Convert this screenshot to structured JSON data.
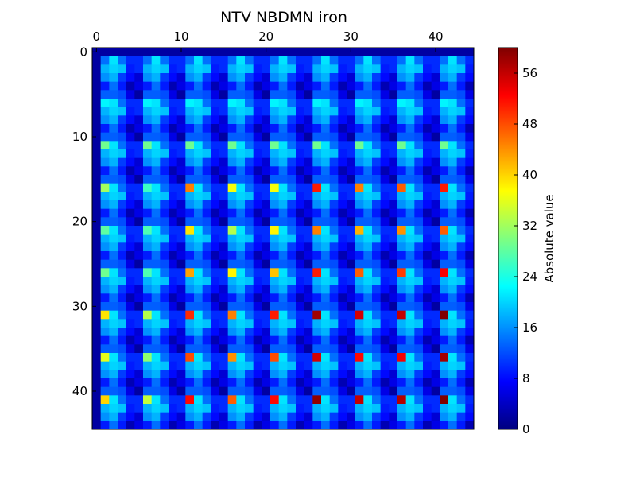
{
  "chart_data": {
    "type": "heatmap",
    "title": "NTV NBDMN iron",
    "xlabel": "",
    "ylabel": "",
    "rows": 45,
    "cols": 45,
    "x_ticks": [
      0,
      10,
      20,
      30,
      40
    ],
    "y_ticks": [
      0,
      10,
      20,
      30,
      40
    ],
    "x_tick_labels": [
      "0",
      "10",
      "20",
      "30",
      "40"
    ],
    "y_tick_labels": [
      "0",
      "10",
      "20",
      "30",
      "40"
    ],
    "x_axis_position": "top",
    "grid": false,
    "colormap": "jet",
    "colorbar": {
      "label": "Absolute value",
      "min": 0,
      "max": 60,
      "ticks": [
        0,
        8,
        16,
        24,
        32,
        40,
        48,
        56
      ],
      "tick_labels": [
        "0",
        "8",
        "16",
        "24",
        "32",
        "40",
        "48",
        "56"
      ],
      "position": "right"
    },
    "block_size": 5,
    "block_count": 9,
    "strong_peaks": {
      "row_offset_in_block": 1,
      "col_offset_in_block": 1,
      "comment_free_values_by_block_row": [
        [
          0,
          0,
          0,
          0,
          0,
          0,
          0,
          0,
          0
        ],
        [
          22,
          22,
          22,
          22,
          22,
          22,
          22,
          22,
          22
        ],
        [
          29,
          29,
          29,
          29,
          29,
          29,
          29,
          29,
          29
        ],
        [
          32,
          26,
          45,
          37,
          37,
          51,
          45,
          47,
          51
        ],
        [
          28,
          27,
          39,
          33,
          38,
          45,
          42,
          44,
          47
        ],
        [
          29,
          27,
          43,
          38,
          41,
          51,
          47,
          49,
          53
        ],
        [
          39,
          33,
          50,
          45,
          51,
          58,
          55,
          56,
          60
        ],
        [
          36,
          31,
          48,
          44,
          48,
          55,
          52,
          53,
          58
        ],
        [
          40,
          34,
          52,
          47,
          52,
          59,
          56,
          57,
          61
        ]
      ]
    },
    "block_interior_values": [
      [
        4,
        12,
        14,
        10,
        6
      ],
      [
        10,
        16,
        20,
        15,
        8
      ],
      [
        8,
        18,
        22,
        18,
        10
      ],
      [
        6,
        14,
        18,
        13,
        7
      ],
      [
        5,
        10,
        12,
        9,
        5
      ]
    ]
  }
}
